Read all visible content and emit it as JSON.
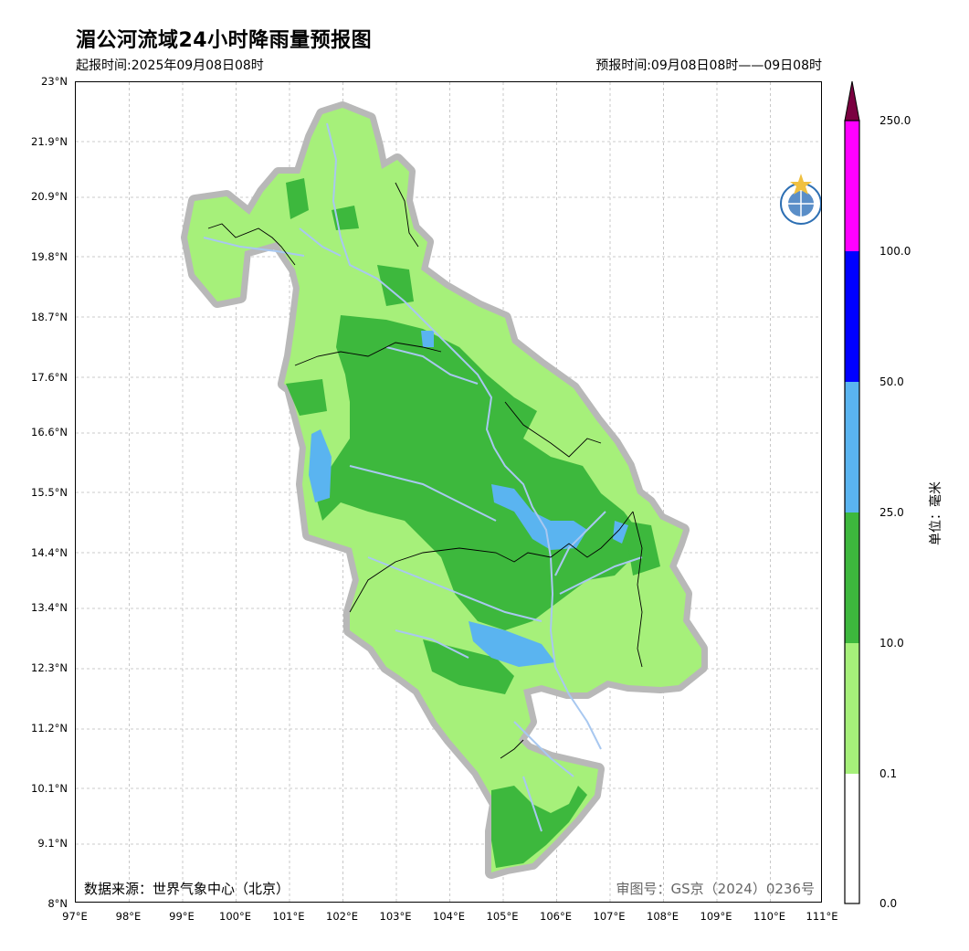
{
  "title": "湄公河流域24小时降雨量预报图",
  "issue_time": "起报时间:2025年09月08日08时",
  "valid_time": "预报时间:09月08日08时——09日08时",
  "source": "数据来源：世界气象中心（北京）",
  "review_no": "审图号：GS京（2024）0236号",
  "unit_label": "单位：毫米",
  "axes": {
    "lat_ticks": [
      "23°N",
      "21.9°N",
      "20.9°N",
      "19.8°N",
      "18.7°N",
      "17.6°N",
      "16.6°N",
      "15.5°N",
      "14.4°N",
      "13.4°N",
      "12.3°N",
      "11.2°N",
      "10.1°N",
      "9.1°N",
      "8°N"
    ],
    "lon_ticks": [
      "97°E",
      "98°E",
      "99°E",
      "100°E",
      "101°E",
      "102°E",
      "103°E",
      "104°E",
      "105°E",
      "106°E",
      "107°E",
      "108°E",
      "109°E",
      "110°E",
      "111°E"
    ]
  },
  "legend": {
    "levels": [
      "250.0",
      "100.0",
      "50.0",
      "25.0",
      "10.0",
      "0.1",
      "0.0"
    ],
    "colors": [
      "#7a0040",
      "#ff00ff",
      "#0000ff",
      "#5ab4f0",
      "#3db83d",
      "#a6f07a",
      "#ffffff"
    ]
  },
  "colors": {
    "light_rain": "#a6f07a",
    "moderate_rain": "#3db83d",
    "heavy_rain": "#5ab4f0",
    "river": "#a8c8f0",
    "basin_outline": "#b8b8b8"
  },
  "logos": [
    "wmo-logo",
    "cma-logo"
  ]
}
